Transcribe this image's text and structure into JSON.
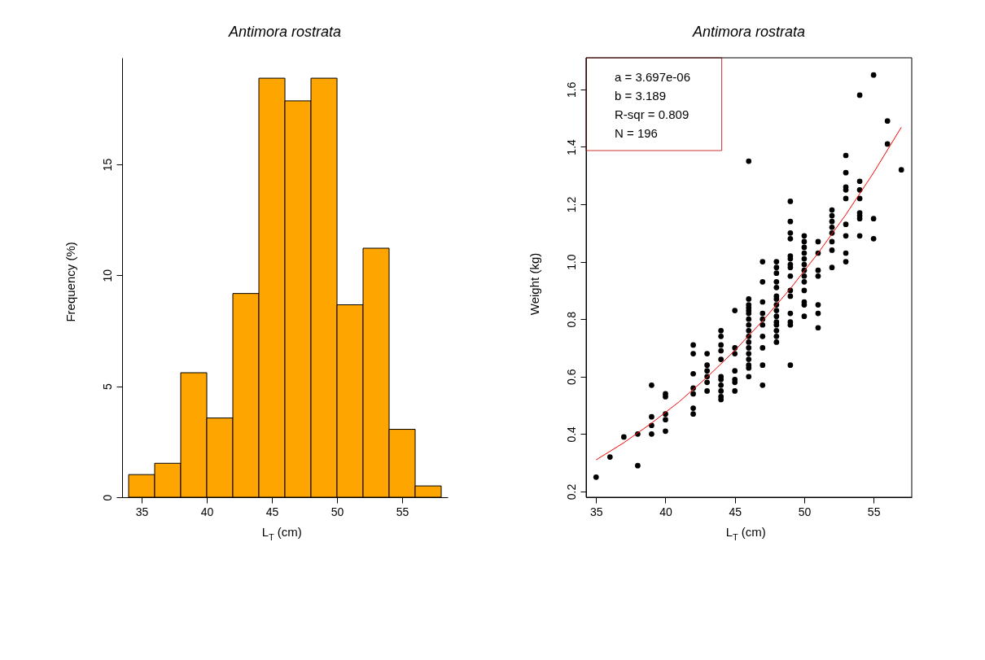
{
  "chart_data": [
    {
      "type": "histogram",
      "title": "Antimora rostrata",
      "xlabel": "L$_{T}$ (cm)",
      "ylabel": "Frequency (%)",
      "color": "#ffa500",
      "bins": [
        34,
        36,
        38,
        40,
        42,
        44,
        46,
        48,
        50,
        52,
        54,
        56,
        58
      ],
      "values": [
        1.02,
        1.53,
        5.61,
        3.57,
        9.18,
        18.88,
        17.86,
        18.88,
        8.67,
        11.22,
        3.06,
        0.51
      ],
      "xlim": [
        33.5,
        58.5
      ],
      "xticks": [
        35,
        40,
        45,
        50,
        55
      ],
      "ylim": [
        0,
        19.8
      ],
      "yticks": [
        0,
        5,
        10,
        15
      ],
      "grid": false
    },
    {
      "type": "scatter",
      "title": "Antimora rostrata",
      "xlabel": "L$_{T}$ (cm)",
      "ylabel": "Weight (kg)",
      "grid": false,
      "xlim": [
        34.28,
        57.75
      ],
      "ylim": [
        0.18,
        1.71
      ],
      "xticks": [
        35,
        40,
        45,
        50,
        55
      ],
      "yticks": [
        0.2,
        0.4,
        0.6,
        0.8,
        {
          "value": 1.0,
          "label": "1.0"
        },
        1.2,
        1.4,
        1.6
      ],
      "annotations": [
        "a = 3.697e-06",
        "b = 3.189",
        "R-sqr = 0.809",
        "N = 196"
      ],
      "series": [
        {
          "type": "scatter",
          "marker": "circle",
          "color": "#000000",
          "x": [
            35,
            36,
            37,
            38,
            38,
            39,
            39,
            39,
            39,
            40,
            40,
            40,
            40,
            40,
            42,
            42,
            42,
            42,
            42,
            42,
            42,
            43,
            43,
            43,
            43,
            43,
            43,
            44,
            44,
            44,
            44,
            44,
            44,
            44,
            44,
            44,
            44,
            44,
            45,
            45,
            45,
            45,
            45,
            45,
            45,
            46,
            46,
            46,
            46,
            46,
            46,
            46,
            46,
            46,
            46,
            46,
            46,
            46,
            46,
            46,
            46,
            46,
            47,
            47,
            47,
            47,
            47,
            47,
            47,
            47,
            47,
            47,
            48,
            48,
            48,
            48,
            48,
            48,
            48,
            48,
            48,
            48,
            48,
            48,
            48,
            48,
            48,
            49,
            49,
            49,
            49,
            49,
            49,
            49,
            49,
            49,
            49,
            49,
            49,
            49,
            49,
            49,
            50,
            50,
            50,
            50,
            50,
            50,
            50,
            50,
            50,
            50,
            50,
            50,
            50,
            51,
            51,
            51,
            51,
            51,
            51,
            51,
            52,
            52,
            52,
            52,
            52,
            52,
            52,
            52,
            53,
            53,
            53,
            53,
            53,
            53,
            53,
            53,
            53,
            54,
            54,
            54,
            54,
            54,
            54,
            54,
            54,
            55,
            55,
            55,
            56,
            56,
            57
          ],
          "values": [
            0.25,
            0.32,
            0.39,
            0.4,
            0.29,
            0.57,
            0.46,
            0.43,
            0.4,
            0.54,
            0.53,
            0.47,
            0.45,
            0.41,
            0.71,
            0.68,
            0.61,
            0.56,
            0.54,
            0.49,
            0.47,
            0.68,
            0.64,
            0.62,
            0.6,
            0.58,
            0.55,
            0.76,
            0.74,
            0.71,
            0.69,
            0.66,
            0.6,
            0.59,
            0.57,
            0.55,
            0.53,
            0.52,
            0.83,
            0.7,
            0.68,
            0.62,
            0.59,
            0.58,
            0.55,
            1.35,
            0.87,
            0.85,
            0.84,
            0.83,
            0.82,
            0.8,
            0.78,
            0.76,
            0.74,
            0.72,
            0.7,
            0.68,
            0.66,
            0.64,
            0.63,
            0.6,
            1.0,
            0.93,
            0.86,
            0.82,
            0.8,
            0.78,
            0.74,
            0.7,
            0.64,
            0.57,
            1.0,
            0.98,
            0.96,
            0.93,
            0.91,
            0.88,
            0.87,
            0.85,
            0.83,
            0.81,
            0.79,
            0.78,
            0.76,
            0.74,
            0.72,
            1.21,
            1.14,
            1.1,
            1.08,
            1.02,
            1.01,
            0.99,
            0.98,
            0.95,
            0.9,
            0.88,
            0.82,
            0.79,
            0.78,
            0.64,
            1.09,
            1.07,
            1.05,
            1.03,
            1.01,
            0.99,
            0.97,
            0.95,
            0.93,
            0.9,
            0.86,
            0.85,
            0.81,
            1.07,
            1.03,
            0.97,
            0.95,
            0.85,
            0.82,
            0.77,
            1.18,
            1.16,
            1.14,
            1.12,
            1.1,
            1.07,
            1.04,
            0.98,
            1.37,
            1.31,
            1.26,
            1.25,
            1.22,
            1.13,
            1.09,
            1.03,
            1.0,
            1.58,
            1.28,
            1.25,
            1.22,
            1.17,
            1.16,
            1.15,
            1.09,
            1.65,
            1.15,
            1.08,
            1.49,
            1.41,
            1.32
          ]
        },
        {
          "type": "line",
          "color": "#ff0000",
          "x": [
            35,
            37,
            39,
            41,
            43,
            45,
            47,
            49,
            51,
            53,
            55,
            57
          ],
          "values": [
            0.31,
            0.37,
            0.438,
            0.513,
            0.598,
            0.691,
            0.794,
            0.906,
            1.03,
            1.164,
            1.31,
            1.468
          ]
        }
      ]
    }
  ]
}
